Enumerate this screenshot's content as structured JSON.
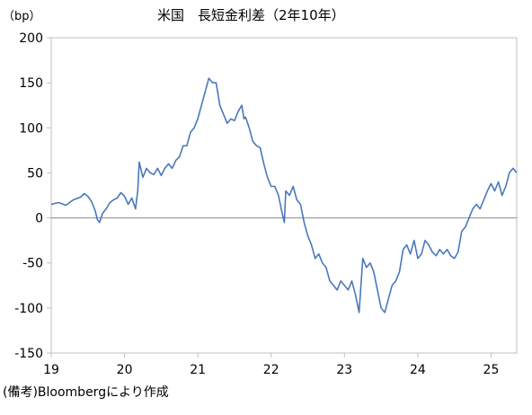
{
  "chart_data": {
    "type": "line",
    "title": "米国　長短金利差（2年10年）",
    "unit_label": "（bp）",
    "source_note": "(備考)Bloombergにより作成",
    "xlabel": "",
    "ylabel": "",
    "xlim": [
      19,
      25.35
    ],
    "ylim": [
      -150,
      200
    ],
    "x_ticks": [
      "19",
      "20",
      "21",
      "22",
      "23",
      "24",
      "25"
    ],
    "y_ticks": [
      "200",
      "150",
      "100",
      "50",
      "0",
      "-50",
      "-100",
      "-150"
    ],
    "grid": false,
    "zero_line": true,
    "line_color": "#4a78bc",
    "series": [
      {
        "values": [
          [
            19.0,
            15
          ],
          [
            19.1,
            17
          ],
          [
            19.2,
            14
          ],
          [
            19.3,
            20
          ],
          [
            19.4,
            23
          ],
          [
            19.45,
            27
          ],
          [
            19.5,
            24
          ],
          [
            19.55,
            18
          ],
          [
            19.6,
            8
          ],
          [
            19.63,
            -2
          ],
          [
            19.66,
            -5
          ],
          [
            19.7,
            5
          ],
          [
            19.75,
            10
          ],
          [
            19.8,
            17
          ],
          [
            19.85,
            20
          ],
          [
            19.9,
            22
          ],
          [
            19.95,
            28
          ],
          [
            20.0,
            24
          ],
          [
            20.05,
            15
          ],
          [
            20.1,
            22
          ],
          [
            20.15,
            10
          ],
          [
            20.18,
            30
          ],
          [
            20.2,
            62
          ],
          [
            20.25,
            45
          ],
          [
            20.3,
            55
          ],
          [
            20.35,
            50
          ],
          [
            20.4,
            48
          ],
          [
            20.45,
            55
          ],
          [
            20.5,
            47
          ],
          [
            20.55,
            55
          ],
          [
            20.6,
            60
          ],
          [
            20.65,
            55
          ],
          [
            20.7,
            64
          ],
          [
            20.75,
            68
          ],
          [
            20.8,
            80
          ],
          [
            20.85,
            80
          ],
          [
            20.9,
            95
          ],
          [
            20.95,
            100
          ],
          [
            21.0,
            110
          ],
          [
            21.05,
            125
          ],
          [
            21.1,
            140
          ],
          [
            21.15,
            155
          ],
          [
            21.2,
            150
          ],
          [
            21.25,
            150
          ],
          [
            21.3,
            125
          ],
          [
            21.35,
            115
          ],
          [
            21.4,
            105
          ],
          [
            21.45,
            110
          ],
          [
            21.5,
            108
          ],
          [
            21.55,
            118
          ],
          [
            21.6,
            125
          ],
          [
            21.63,
            110
          ],
          [
            21.65,
            112
          ],
          [
            21.7,
            100
          ],
          [
            21.75,
            85
          ],
          [
            21.8,
            80
          ],
          [
            21.85,
            78
          ],
          [
            21.9,
            60
          ],
          [
            21.95,
            45
          ],
          [
            22.0,
            35
          ],
          [
            22.05,
            35
          ],
          [
            22.1,
            25
          ],
          [
            22.15,
            5
          ],
          [
            22.18,
            -5
          ],
          [
            22.2,
            30
          ],
          [
            22.25,
            25
          ],
          [
            22.3,
            35
          ],
          [
            22.35,
            20
          ],
          [
            22.4,
            15
          ],
          [
            22.45,
            -5
          ],
          [
            22.5,
            -20
          ],
          [
            22.55,
            -30
          ],
          [
            22.6,
            -45
          ],
          [
            22.65,
            -40
          ],
          [
            22.7,
            -50
          ],
          [
            22.75,
            -55
          ],
          [
            22.8,
            -70
          ],
          [
            22.85,
            -75
          ],
          [
            22.9,
            -80
          ],
          [
            22.95,
            -70
          ],
          [
            23.0,
            -75
          ],
          [
            23.05,
            -80
          ],
          [
            23.1,
            -70
          ],
          [
            23.15,
            -85
          ],
          [
            23.2,
            -105
          ],
          [
            23.25,
            -45
          ],
          [
            23.3,
            -55
          ],
          [
            23.35,
            -50
          ],
          [
            23.4,
            -60
          ],
          [
            23.45,
            -80
          ],
          [
            23.5,
            -100
          ],
          [
            23.55,
            -105
          ],
          [
            23.6,
            -90
          ],
          [
            23.65,
            -75
          ],
          [
            23.7,
            -70
          ],
          [
            23.75,
            -60
          ],
          [
            23.8,
            -35
          ],
          [
            23.85,
            -30
          ],
          [
            23.9,
            -40
          ],
          [
            23.95,
            -25
          ],
          [
            24.0,
            -45
          ],
          [
            24.05,
            -40
          ],
          [
            24.1,
            -25
          ],
          [
            24.15,
            -30
          ],
          [
            24.2,
            -38
          ],
          [
            24.25,
            -42
          ],
          [
            24.3,
            -35
          ],
          [
            24.35,
            -40
          ],
          [
            24.4,
            -35
          ],
          [
            24.45,
            -42
          ],
          [
            24.5,
            -45
          ],
          [
            24.55,
            -38
          ],
          [
            24.6,
            -15
          ],
          [
            24.65,
            -10
          ],
          [
            24.7,
            0
          ],
          [
            24.75,
            10
          ],
          [
            24.8,
            15
          ],
          [
            24.85,
            10
          ],
          [
            24.9,
            20
          ],
          [
            24.95,
            30
          ],
          [
            25.0,
            38
          ],
          [
            25.05,
            30
          ],
          [
            25.1,
            40
          ],
          [
            25.15,
            25
          ],
          [
            25.2,
            35
          ],
          [
            25.25,
            50
          ],
          [
            25.3,
            55
          ],
          [
            25.35,
            50
          ]
        ]
      }
    ]
  }
}
